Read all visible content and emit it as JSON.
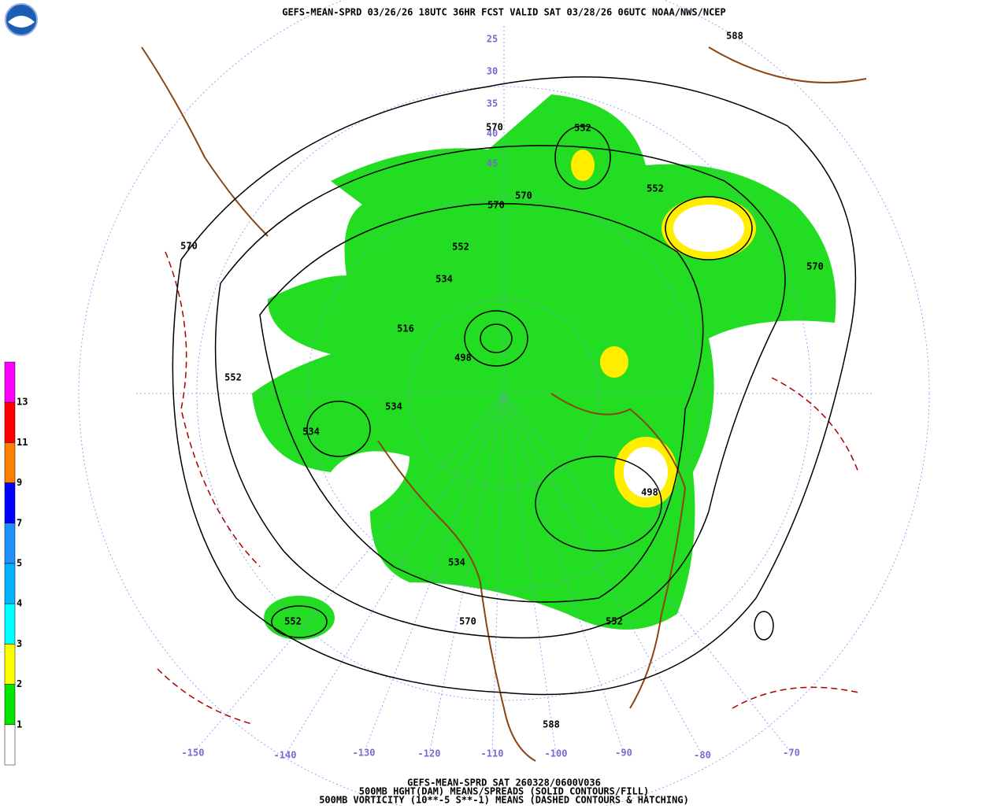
{
  "header": {
    "title": "GEFS-MEAN-SPRD 03/26/26 18UTC 36HR FCST VALID SAT 03/28/26 06UTC NOAA/NWS/NCEP"
  },
  "colorbar": {
    "colors": [
      "#ff00ff",
      "#ff0000",
      "#ff8000",
      "#0000ff",
      "#1e90ff",
      "#00b4ff",
      "#00ffff",
      "#ffff00",
      "#00e600",
      "#ffffff"
    ],
    "labels": [
      "13",
      "11",
      "9",
      "7",
      "5",
      "4",
      "3",
      "2",
      "1"
    ]
  },
  "map": {
    "longitude_labels": [
      "-150",
      "-140",
      "-130",
      "-120",
      "-110",
      "-100",
      "-90",
      "-80",
      "-70"
    ],
    "latitude_labels": [
      "25",
      "30",
      "35",
      "40",
      "45"
    ],
    "contour_labels": [
      "588",
      "552",
      "570",
      "570",
      "570",
      "552",
      "534",
      "516",
      "498",
      "552",
      "570",
      "570",
      "534",
      "534",
      "534",
      "570",
      "552",
      "552",
      "498",
      "588",
      "552"
    ]
  },
  "footer": {
    "lines": [
      "GEFS-MEAN-SPRD SAT 260328/0600V036",
      "500MB HGHT(DAM) MEANS/SPREADS (SOLID CONTOURS/FILL)",
      "500MB VORTICITY (10**-5 S**-1) MEANS (DASHED CONTOURS & HATCHING)"
    ]
  }
}
